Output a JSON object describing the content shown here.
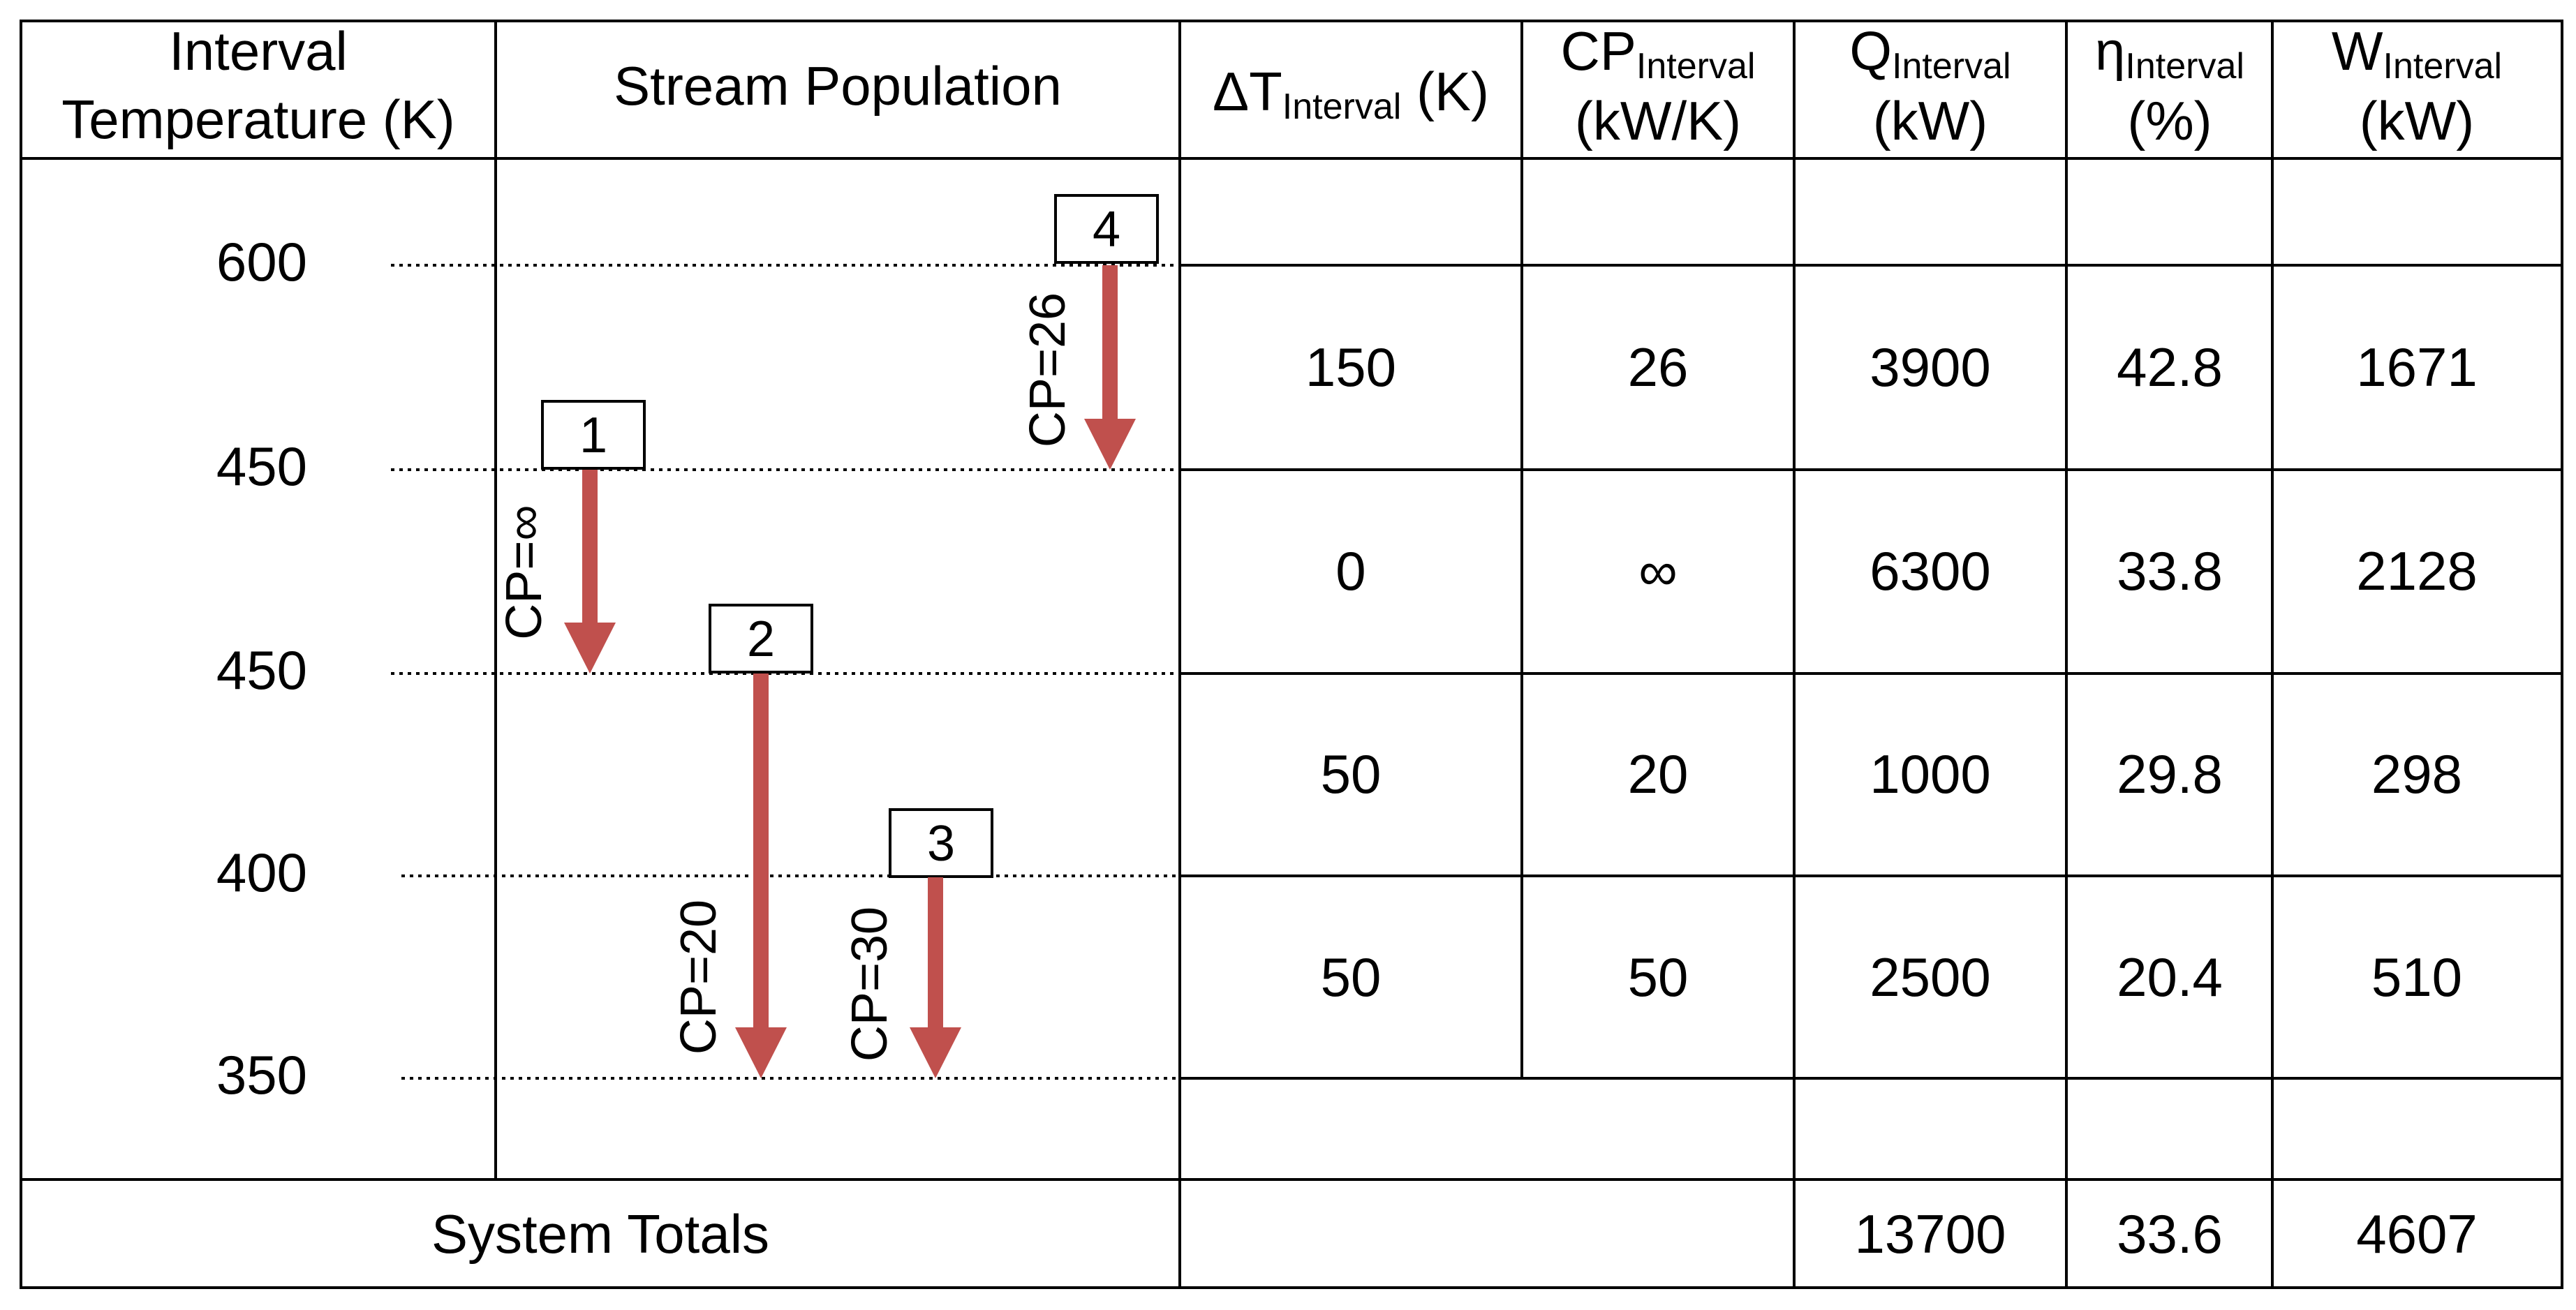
{
  "header": {
    "interval_temperature": [
      "Interval",
      "Temperature (K)"
    ],
    "stream_population": "Stream Population",
    "delta_t": {
      "main": "ΔT",
      "sub": "Interval",
      "unit": " (K)"
    },
    "cp": {
      "main": "CP",
      "sub": "Interval",
      "unit": "(kW/K)"
    },
    "q": {
      "main": "Q",
      "sub": "Interval",
      "unit": "(kW)"
    },
    "eta": {
      "main": "η",
      "sub": "Interval",
      "unit": "(%)"
    },
    "w": {
      "main": "W",
      "sub": "Interval",
      "unit": "(kW)"
    }
  },
  "temperatures": [
    "600",
    "450",
    "450",
    "400",
    "350"
  ],
  "streams": [
    {
      "id": "1",
      "cp_label": "CP=∞"
    },
    {
      "id": "2",
      "cp_label": "CP=20"
    },
    {
      "id": "3",
      "cp_label": "CP=30"
    },
    {
      "id": "4",
      "cp_label": "CP=26"
    }
  ],
  "rows": [
    {
      "delta_t": "150",
      "cp": "26",
      "q": "3900",
      "eta": "42.8",
      "w": "1671"
    },
    {
      "delta_t": "0",
      "cp": "∞",
      "q": "6300",
      "eta": "33.8",
      "w": "2128"
    },
    {
      "delta_t": "50",
      "cp": "20",
      "q": "1000",
      "eta": "29.8",
      "w": "298"
    },
    {
      "delta_t": "50",
      "cp": "50",
      "q": "2500",
      "eta": "20.4",
      "w": "510"
    }
  ],
  "totals": {
    "label": "System Totals",
    "q": "13700",
    "eta": "33.6",
    "w": "4607"
  },
  "colors": {
    "arrow": "#c0504d",
    "line": "#000000"
  }
}
